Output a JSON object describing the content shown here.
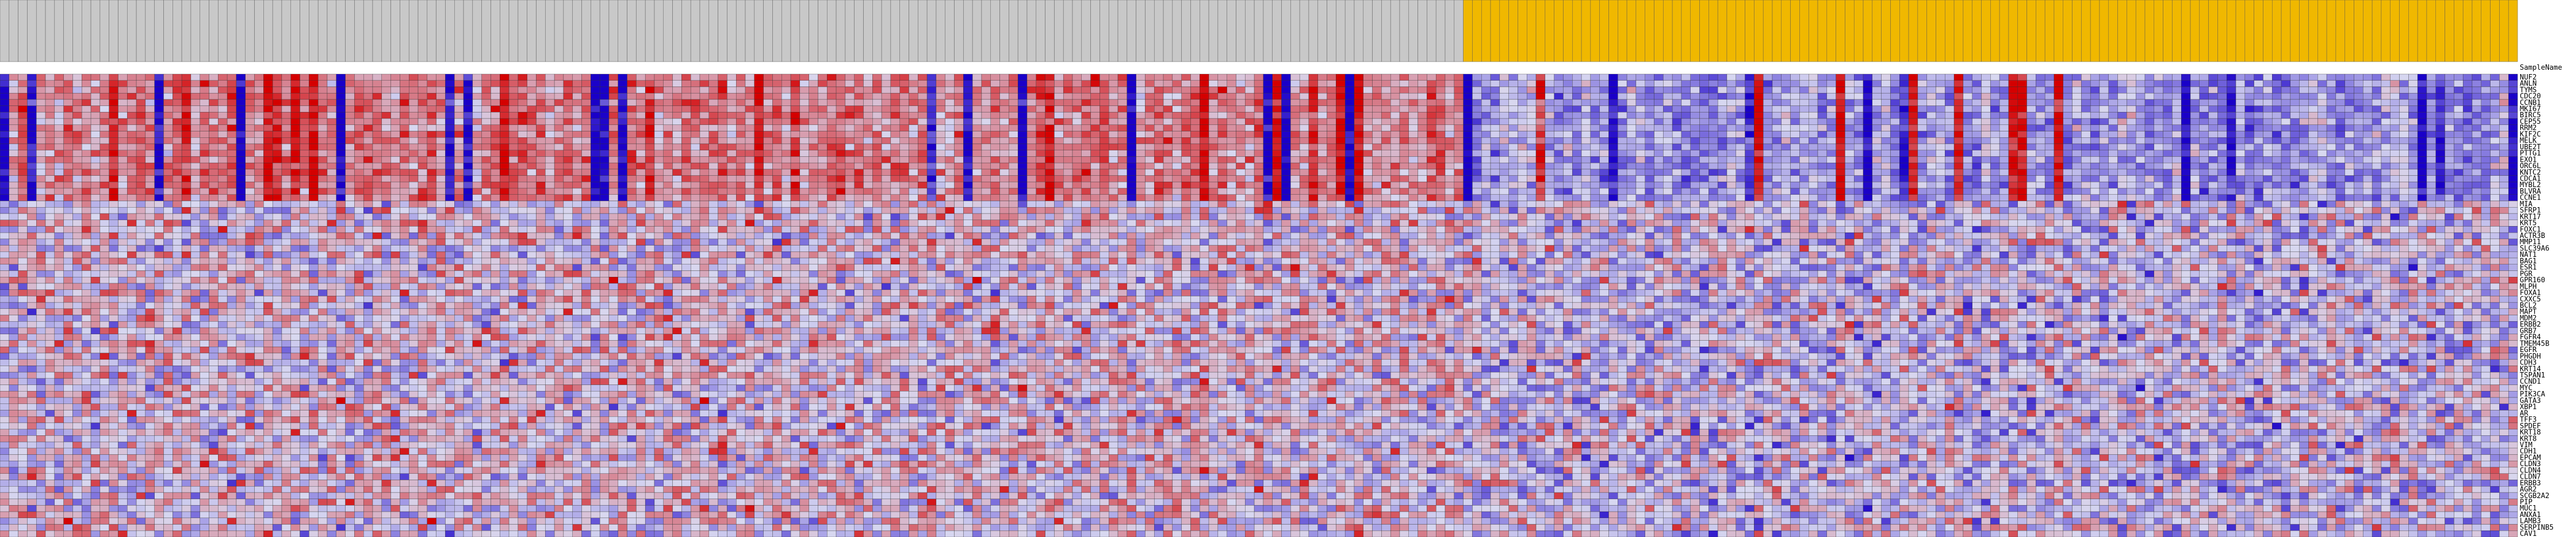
{
  "chart_data": {
    "type": "heatmap",
    "title": "",
    "xlabel": "",
    "ylabel": "",
    "sample_header": "SampleName",
    "n_samples": 277,
    "n_group_a": 161,
    "group_colors": {
      "a": "#c8c8c8",
      "b": "#f0b800"
    },
    "color_scale": {
      "low": "#1a00c8",
      "mid": "#d8d8f0",
      "high": "#d40000",
      "range": [
        -2,
        2
      ]
    },
    "column_label_text": "Sample",
    "rows": [
      "NUF2",
      "ANLN",
      "TYMS",
      "CDC20",
      "CCNB1",
      "MKI67",
      "BIRC5",
      "CEP55",
      "RRM2",
      "KIF2C",
      "MELK",
      "UBE2T",
      "PTTG1",
      "EXO1",
      "ORC6L",
      "KNTC2",
      "CDCA1",
      "MYBL2",
      "BLVRA",
      "CCNE1",
      "MIA",
      "SFRP1",
      "KRT17",
      "KRT5",
      "FOXC1",
      "ACTR3B",
      "MMP11",
      "SLC39A6",
      "NAT1",
      "BAG1",
      "ESR1",
      "PGR",
      "GPR160",
      "MLPH",
      "FOXA1",
      "CXXC5",
      "BCL2",
      "MAPT",
      "MDM2",
      "ERBB2",
      "GRB7",
      "FGFR4",
      "TMEM45B",
      "EGFR",
      "PHGDH",
      "CDH3",
      "KRT14",
      "TSPAN1",
      "CCND1",
      "MYC",
      "PIK3CA",
      "GATA3",
      "XBP1",
      "AR",
      "TFF3",
      "SPDEF",
      "KRT18",
      "KRT8",
      "VIM",
      "CDH1",
      "EPCAM",
      "CLDN3",
      "CLDN4",
      "CLDN7",
      "ERBB3",
      "AGR2",
      "SCGB2A2",
      "PIP",
      "MUC1",
      "ANXA1",
      "LAMB3",
      "SERPINB5",
      "CAV1"
    ],
    "values": []
  }
}
